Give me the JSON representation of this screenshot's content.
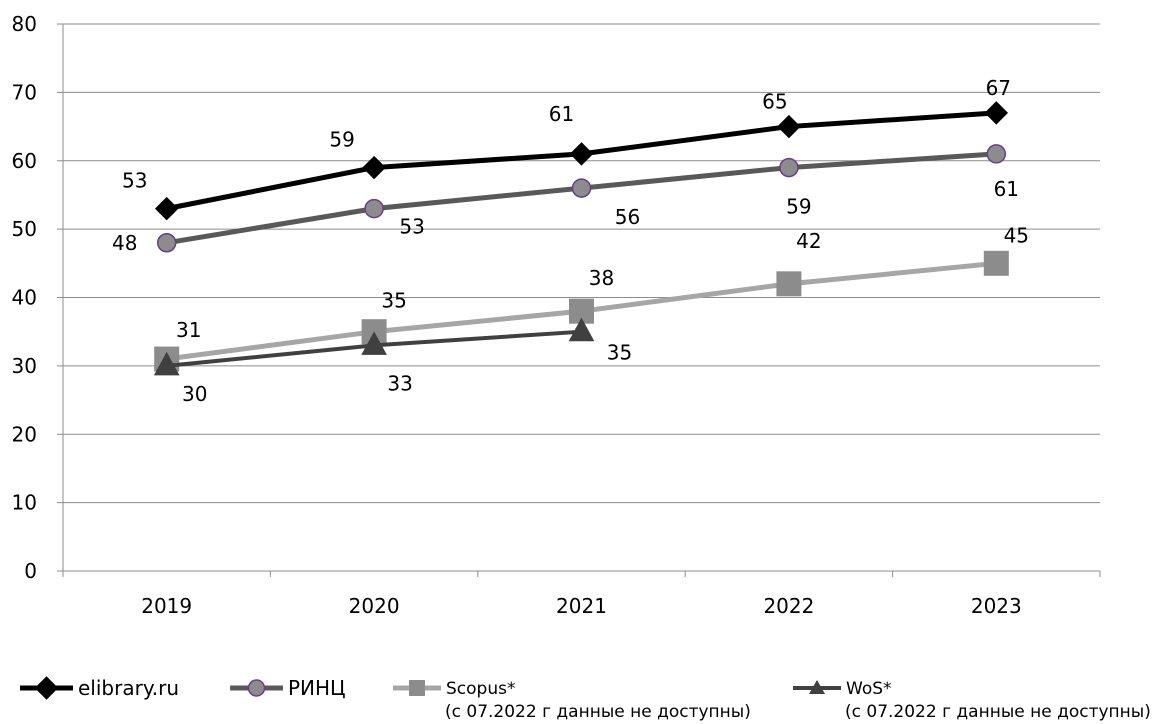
{
  "chart_data": {
    "type": "line",
    "categories": [
      "2019",
      "2020",
      "2021",
      "2022",
      "2023"
    ],
    "ylim": [
      0,
      80
    ],
    "y_ticks": [
      0,
      10,
      20,
      30,
      40,
      50,
      60,
      70,
      80
    ],
    "grid": true,
    "legend_position": "bottom",
    "series": [
      {
        "name": "elibrary.ru",
        "note": "",
        "values": [
          53,
          59,
          61,
          65,
          67
        ],
        "color": "#000000",
        "marker": "diamond"
      },
      {
        "name": "РИНЦ",
        "note": "",
        "values": [
          48,
          53,
          56,
          59,
          61
        ],
        "color": "#595959",
        "marker": "circle",
        "marker_fill": "#8c8c8c",
        "marker_stroke": "#6a3c8a"
      },
      {
        "name": "Scopus*",
        "note": "(с 07.2022 г данные не доступны)",
        "values": [
          31,
          35,
          38,
          42,
          45
        ],
        "color": "#a6a6a6",
        "marker": "square",
        "marker_fill": "#8c8c8c"
      },
      {
        "name": "WoS*",
        "note": "(с 07.2022 г данные не доступны)",
        "values": [
          30,
          33,
          35,
          null,
          null
        ],
        "color": "#404040",
        "marker": "triangle"
      }
    ]
  }
}
